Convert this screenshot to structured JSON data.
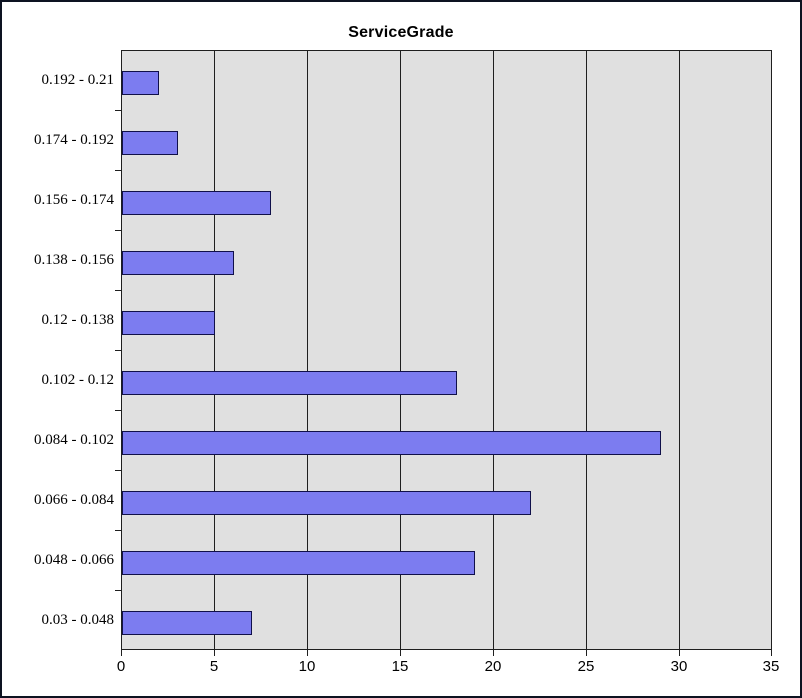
{
  "chart_data": {
    "type": "bar",
    "orientation": "horizontal",
    "title": "ServiceGrade",
    "categories": [
      "0.192 - 0.21",
      "0.174 - 0.192",
      "0.156 - 0.174",
      "0.138 - 0.156",
      "0.12 - 0.138",
      "0.102 - 0.12",
      "0.084 - 0.102",
      "0.066 - 0.084",
      "0.048 - 0.066",
      "0.03 - 0.048"
    ],
    "values": [
      2,
      3,
      8,
      6,
      5,
      18,
      29,
      22,
      19,
      7
    ],
    "xticks": [
      0,
      5,
      10,
      15,
      20,
      25,
      30,
      35
    ],
    "xlim": [
      0,
      35
    ],
    "xlabel": "",
    "ylabel": "",
    "grid": true,
    "legend": false,
    "colors": {
      "bar_fill": "#7c7cf0",
      "bar_border": "#10104a",
      "plot_bg": "#e0e0e0",
      "grid_line": "#1f1f1f",
      "frame": "#0d1321",
      "text": "#000000"
    }
  }
}
